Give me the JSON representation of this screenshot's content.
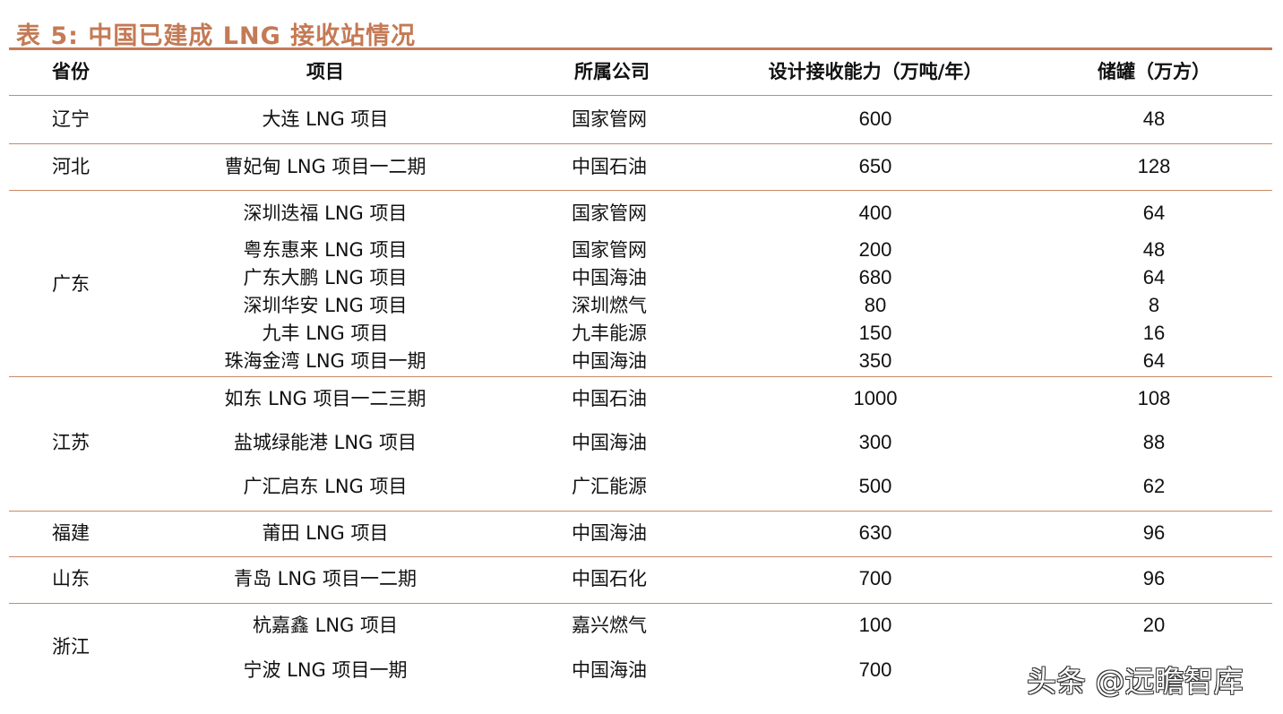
{
  "title": "表 5:  中国已建成 LNG 接收站情况",
  "headers": {
    "province": "省份",
    "project": "项目",
    "company": "所属公司",
    "capacity": "设计接收能力（万吨/年）",
    "storage": "储罐（万方）"
  },
  "groups": [
    {
      "province": "辽宁",
      "rows": [
        {
          "project": "大连 LNG 项目",
          "company": "国家管网",
          "capacity": "600",
          "storage": "48"
        }
      ]
    },
    {
      "province": "河北",
      "rows": [
        {
          "project": "曹妃甸 LNG 项目一二期",
          "company": "中国石油",
          "capacity": "650",
          "storage": "128"
        }
      ]
    },
    {
      "province": "广东",
      "rows": [
        {
          "project": "深圳迭福 LNG 项目",
          "company": "国家管网",
          "capacity": "400",
          "storage": "64"
        },
        {
          "project": "粤东惠来 LNG 项目",
          "company": "国家管网",
          "capacity": "200",
          "storage": "48"
        },
        {
          "project": "广东大鹏 LNG 项目",
          "company": "中国海油",
          "capacity": "680",
          "storage": "64"
        },
        {
          "project": "深圳华安 LNG 项目",
          "company": "深圳燃气",
          "capacity": "80",
          "storage": "8"
        },
        {
          "project": "九丰 LNG 项目",
          "company": "九丰能源",
          "capacity": "150",
          "storage": "16"
        },
        {
          "project": "珠海金湾 LNG 项目一期",
          "company": "中国海油",
          "capacity": "350",
          "storage": "64"
        }
      ]
    },
    {
      "province": "江苏",
      "rows": [
        {
          "project": "如东 LNG 项目一二三期",
          "company": "中国石油",
          "capacity": "1000",
          "storage": "108"
        },
        {
          "project": "盐城绿能港 LNG 项目",
          "company": "中国海油",
          "capacity": "300",
          "storage": "88"
        },
        {
          "project": "广汇启东 LNG 项目",
          "company": "广汇能源",
          "capacity": "500",
          "storage": "62"
        }
      ]
    },
    {
      "province": "福建",
      "rows": [
        {
          "project": "莆田 LNG 项目",
          "company": "中国海油",
          "capacity": "630",
          "storage": "96"
        }
      ]
    },
    {
      "province": "山东",
      "rows": [
        {
          "project": "青岛 LNG 项目一二期",
          "company": "中国石化",
          "capacity": "700",
          "storage": "96"
        }
      ]
    },
    {
      "province": "浙江",
      "rows": [
        {
          "project": "杭嘉鑫 LNG 项目",
          "company": "嘉兴燃气",
          "capacity": "100",
          "storage": "20"
        },
        {
          "project": "宁波 LNG 项目一期",
          "company": "中国海油",
          "capacity": "700",
          "storage": ""
        }
      ]
    }
  ],
  "watermark": "头条 @远瞻智库"
}
